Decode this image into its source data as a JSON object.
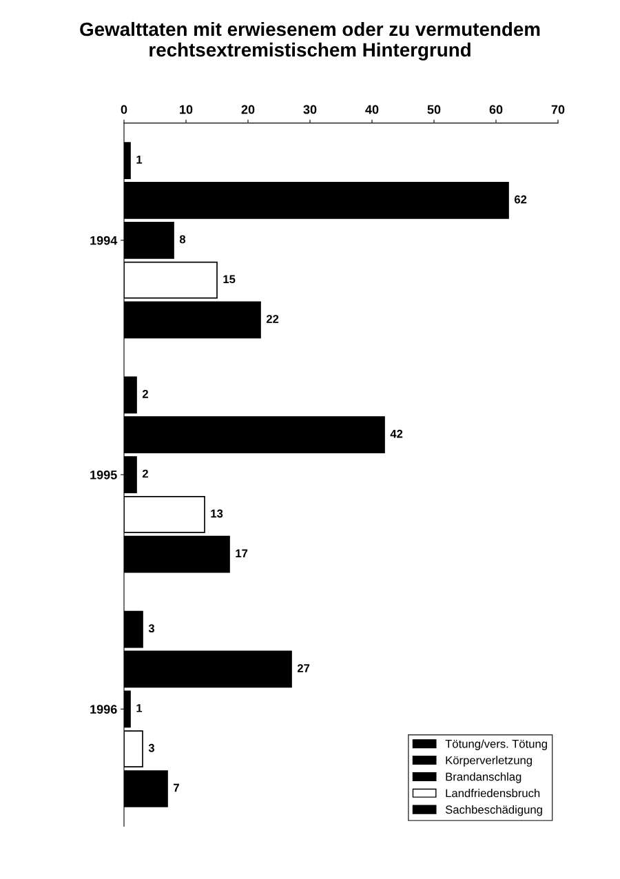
{
  "chart_data": {
    "type": "bar",
    "orientation": "horizontal",
    "title": "Gewalttaten mit erwiesenem oder zu vermutendem\nrechtsextremistischem Hintergrund",
    "categories": [
      "1994",
      "1995",
      "1996"
    ],
    "series": [
      {
        "name": "Tötung/vers. Tötung",
        "color": "#000000",
        "values": [
          1,
          2,
          3
        ]
      },
      {
        "name": "Körperverletzung",
        "color": "#000000",
        "values": [
          62,
          42,
          27
        ]
      },
      {
        "name": "Brandanschlag",
        "color": "#000000",
        "values": [
          8,
          2,
          1
        ]
      },
      {
        "name": "Landfriedensbruch",
        "color": "#ffffff",
        "values": [
          15,
          13,
          3
        ]
      },
      {
        "name": "Sachbeschädigung",
        "color": "#000000",
        "values": [
          22,
          17,
          7
        ]
      }
    ],
    "xlim": [
      0,
      70
    ],
    "xticks": [
      0,
      10,
      20,
      30,
      40,
      50,
      60,
      70
    ],
    "data_labels": true,
    "legend": "bottom right",
    "grid": false
  }
}
